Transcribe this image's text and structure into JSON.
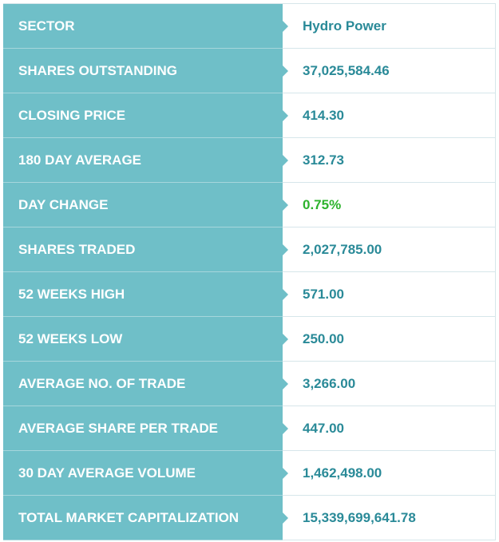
{
  "rows": [
    {
      "label": "SECTOR",
      "value": "Hydro Power"
    },
    {
      "label": "SHARES OUTSTANDING",
      "value": "37,025,584.46"
    },
    {
      "label": "CLOSING PRICE",
      "value": "414.30"
    },
    {
      "label": "180 DAY AVERAGE",
      "value": "312.73"
    },
    {
      "label": "DAY CHANGE",
      "value": "0.75%",
      "value_color": "#2db32d"
    },
    {
      "label": "SHARES TRADED",
      "value": "2,027,785.00"
    },
    {
      "label": "52 WEEKS HIGH",
      "value": "571.00"
    },
    {
      "label": "52 WEEKS LOW",
      "value": "250.00"
    },
    {
      "label": "AVERAGE NO. OF TRADE",
      "value": "3,266.00"
    },
    {
      "label": "AVERAGE SHARE PER TRADE",
      "value": "447.00"
    },
    {
      "label": "30 DAY AVERAGE VOLUME",
      "value": "1,462,498.00"
    },
    {
      "label": "TOTAL MARKET CAPITALIZATION",
      "value": "15,339,699,641.78"
    }
  ],
  "colors": {
    "label_background": "#6fbfc8",
    "label_text": "#ffffff",
    "value_text": "#2a8a98",
    "positive_change": "#2db32d"
  }
}
